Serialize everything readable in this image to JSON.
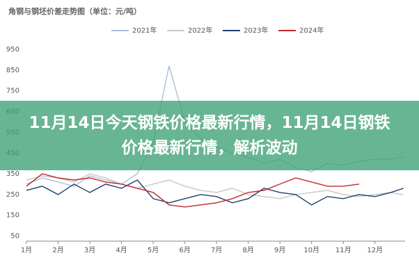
{
  "chart_data": {
    "type": "line",
    "title": "角钢与钢坯价差走势图（单位：元/吨）",
    "x": [
      1,
      1.5,
      2,
      2.5,
      3,
      3.5,
      4,
      4.5,
      5,
      5.5,
      6,
      6.5,
      7,
      7.5,
      8,
      8.5,
      9,
      9.5,
      10,
      10.5,
      11,
      11.5,
      12,
      12.5,
      12.9
    ],
    "xlim": [
      1,
      12.95
    ],
    "xticks": [
      {
        "value": 1,
        "label": "1月"
      },
      {
        "value": 2,
        "label": "2月"
      },
      {
        "value": 3,
        "label": "3月"
      },
      {
        "value": 4,
        "label": "4月"
      },
      {
        "value": 5,
        "label": "5月"
      },
      {
        "value": 6,
        "label": "6月"
      },
      {
        "value": 7,
        "label": "7月"
      },
      {
        "value": 8,
        "label": "8月"
      },
      {
        "value": 9,
        "label": "9月"
      },
      {
        "value": 10,
        "label": "10月"
      },
      {
        "value": 11,
        "label": "11月"
      },
      {
        "value": 12,
        "label": "12月"
      }
    ],
    "ylim": [
      25,
      975
    ],
    "yticks": [
      50,
      150,
      250,
      350,
      450,
      550,
      650,
      750,
      850,
      950
    ],
    "series": [
      {
        "name": "2021年",
        "color": "#a9bfd9",
        "values": [
          300,
          330,
          310,
          290,
          340,
          320,
          300,
          350,
          500,
          870,
          600,
          520,
          480,
          450,
          430,
          400,
          420,
          380,
          360,
          400,
          390,
          410,
          420,
          420,
          430
        ]
      },
      {
        "name": "2022年",
        "color": "#c6c6c6",
        "values": [
          320,
          340,
          330,
          310,
          350,
          330,
          300,
          280,
          300,
          320,
          290,
          270,
          260,
          280,
          250,
          240,
          230,
          250,
          260,
          270,
          250,
          240,
          250,
          260,
          250
        ]
      },
      {
        "name": "2023年",
        "color": "#1f3e6e",
        "values": [
          270,
          290,
          250,
          300,
          260,
          300,
          280,
          320,
          230,
          210,
          230,
          250,
          240,
          210,
          230,
          280,
          260,
          250,
          200,
          240,
          230,
          250,
          240,
          260,
          280
        ]
      },
      {
        "name": "2024年",
        "color": "#c0262d",
        "values": [
          290,
          350,
          330,
          320,
          330,
          310,
          300,
          280,
          260,
          200,
          190,
          200,
          210,
          230,
          260,
          270,
          300,
          330,
          310,
          290,
          290,
          300,
          null,
          null,
          null
        ]
      }
    ]
  },
  "overlay_text": "11月14日今天钢铁价格最新行情，11月14日钢铁价格最新行情，解析波动"
}
